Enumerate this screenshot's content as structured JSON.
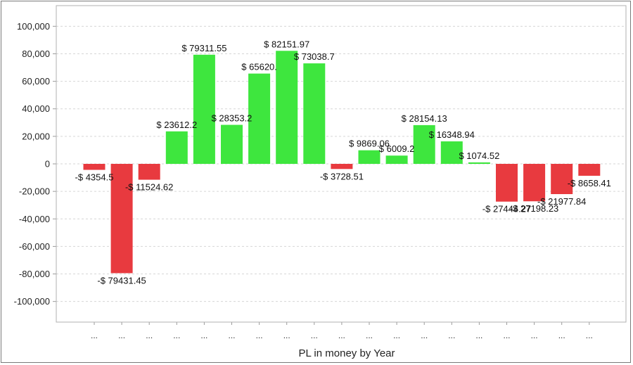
{
  "chart_data": {
    "type": "bar",
    "title": "",
    "xlabel": "PL in money by Year",
    "ylabel": "",
    "ylim": [
      -115000,
      115000
    ],
    "yticks": [
      100000,
      80000,
      60000,
      40000,
      20000,
      0,
      -20000,
      -40000,
      -60000,
      -80000,
      -100000
    ],
    "ytick_labels": [
      "100,000",
      "80,000",
      "60,000",
      "40,000",
      "20,000",
      "0",
      "-20,000",
      "-40,000",
      "-60,000",
      "-80,000",
      "-100,000"
    ],
    "grid": true,
    "legend": "none",
    "categories": [
      "...",
      "...",
      "...",
      "...",
      "...",
      "...",
      "...",
      "...",
      "...",
      "...",
      "...",
      "...",
      "...",
      "...",
      "...",
      "...",
      "...",
      "...",
      "..."
    ],
    "values": [
      -4354.5,
      -79431.45,
      -11524.62,
      23612.2,
      79311.55,
      28353.2,
      65620,
      82151.97,
      73038.7,
      -3728.51,
      9869.06,
      6009.2,
      28154.13,
      16348.94,
      1074.52,
      -27444.27,
      -27198.23,
      -21977.84,
      -8658.41
    ],
    "data_labels": [
      "-$ 4354.5",
      "-$ 79431.45",
      "-$ 11524.62",
      "$ 23612.2",
      "$ 79311.55",
      "$ 28353.2",
      "$ 65620.",
      "$ 82151.97",
      "$ 73038.7",
      "-$ 3728.51",
      "$ 9869.06",
      "$ 6009.2",
      "$ 28154.13",
      "$ 16348.94",
      "$ 1074.52",
      "-$ 27444.27",
      "-$ 27198.23",
      "-$ 21977.84",
      "-$ 8658.41"
    ],
    "colors": {
      "positive": "#3ee63e",
      "negative": "#e83a3f",
      "grid": "#d6d6d6",
      "axis": "#9a9a9a"
    }
  }
}
